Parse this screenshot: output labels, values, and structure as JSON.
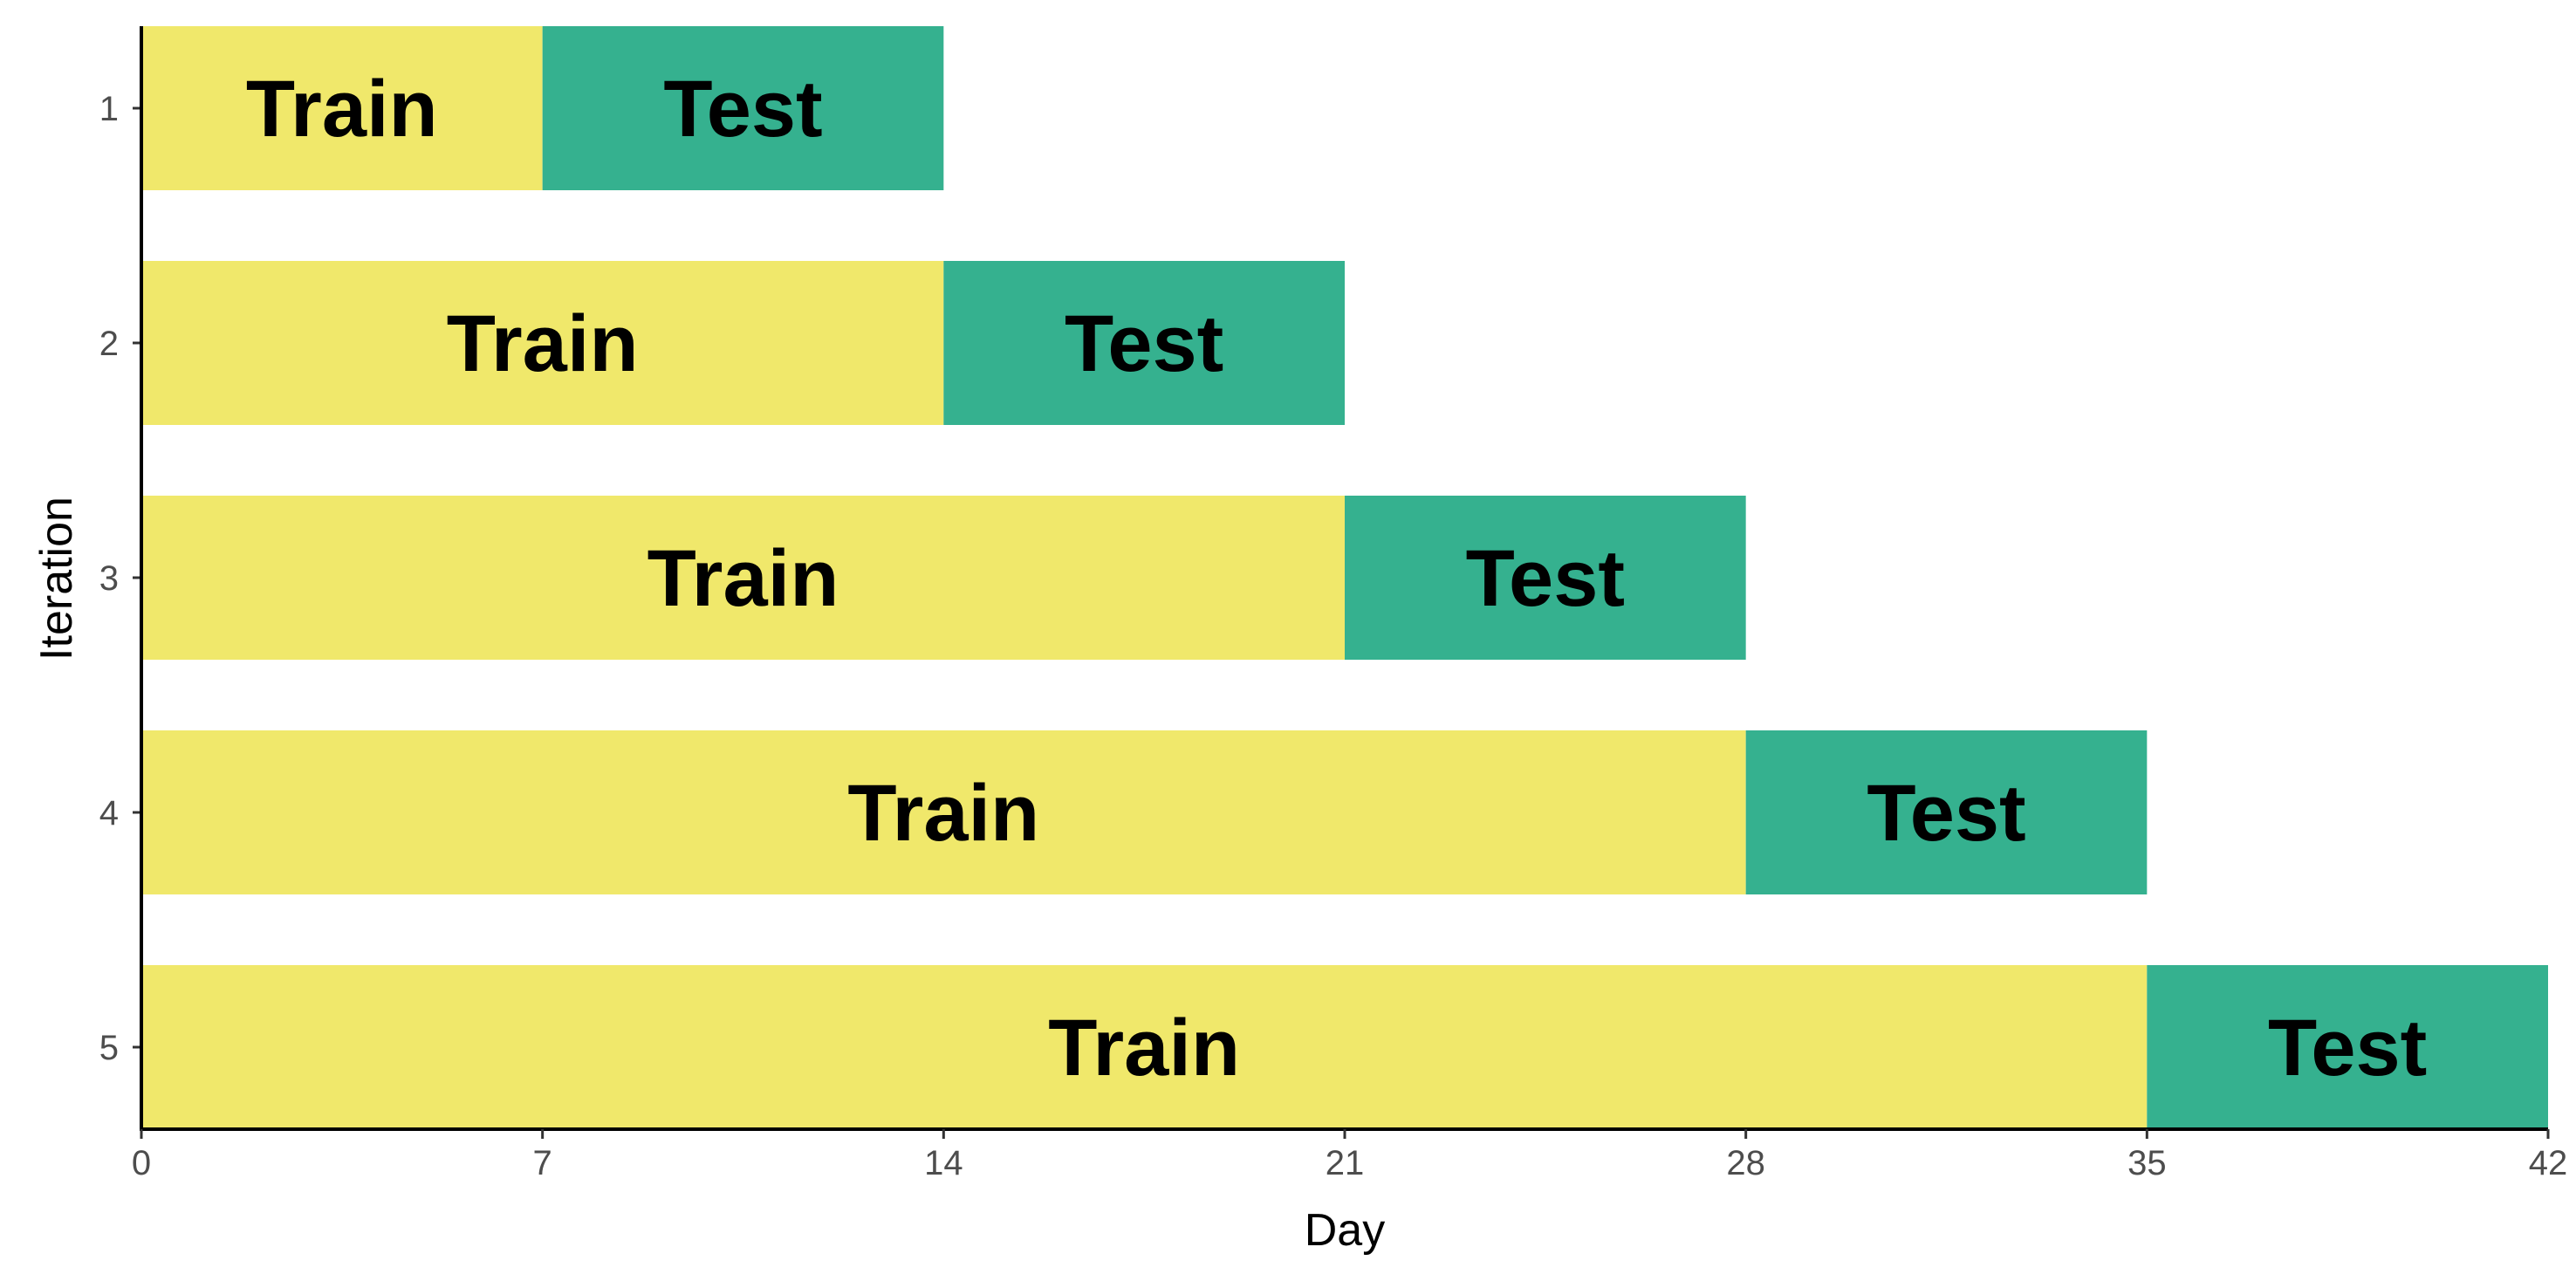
{
  "chart_data": {
    "type": "bar",
    "orientation": "horizontal",
    "stacked": true,
    "xlabel": "Day",
    "ylabel": "Iteration",
    "xlim": [
      0,
      42
    ],
    "x_ticks": [
      0,
      7,
      14,
      21,
      28,
      35,
      42
    ],
    "categories": [
      "1",
      "2",
      "3",
      "4",
      "5"
    ],
    "series": [
      {
        "name": "Train",
        "values": [
          7,
          14,
          21,
          28,
          35
        ],
        "color": "#f0e86b"
      },
      {
        "name": "Test",
        "values": [
          7,
          7,
          7,
          7,
          7
        ],
        "color": "#35b18f"
      }
    ],
    "grid": false,
    "legend": "none"
  }
}
